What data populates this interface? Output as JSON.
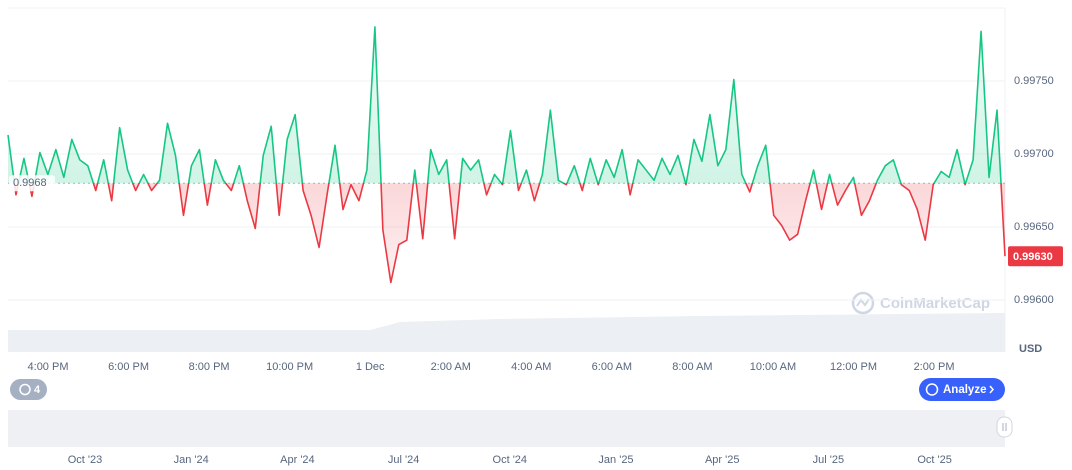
{
  "chart_data": {
    "type": "line",
    "values": [
      0.99713,
      0.99672,
      0.99697,
      0.99671,
      0.99701,
      0.99686,
      0.99703,
      0.99684,
      0.9971,
      0.99696,
      0.99692,
      0.99675,
      0.99696,
      0.99668,
      0.99718,
      0.99689,
      0.99675,
      0.99686,
      0.99675,
      0.99682,
      0.99721,
      0.99699,
      0.99658,
      0.99692,
      0.99703,
      0.99665,
      0.99696,
      0.99682,
      0.99675,
      0.99692,
      0.99668,
      0.99649,
      0.99699,
      0.99719,
      0.99658,
      0.9971,
      0.99727,
      0.99675,
      0.99658,
      0.99636,
      0.99672,
      0.99706,
      0.99662,
      0.99679,
      0.99668,
      0.99689,
      0.99787,
      0.99648,
      0.99612,
      0.99638,
      0.99641,
      0.99689,
      0.99642,
      0.99703,
      0.99686,
      0.99696,
      0.99642,
      0.99697,
      0.99689,
      0.99696,
      0.99672,
      0.99686,
      0.99679,
      0.99716,
      0.99675,
      0.99689,
      0.99668,
      0.99686,
      0.9973,
      0.99682,
      0.99679,
      0.99692,
      0.99675,
      0.99697,
      0.99679,
      0.99696,
      0.99684,
      0.99703,
      0.99672,
      0.99696,
      0.99689,
      0.99682,
      0.99697,
      0.99686,
      0.99699,
      0.99679,
      0.9971,
      0.99695,
      0.99727,
      0.99692,
      0.99703,
      0.99751,
      0.99686,
      0.99674,
      0.99692,
      0.99706,
      0.99658,
      0.99651,
      0.99641,
      0.99645,
      0.99668,
      0.99689,
      0.99662,
      0.99686,
      0.99665,
      0.99675,
      0.99684,
      0.99658,
      0.99668,
      0.99682,
      0.99692,
      0.99696,
      0.99679,
      0.99675,
      0.99662,
      0.99641,
      0.99679,
      0.99688,
      0.99684,
      0.99703,
      0.99679,
      0.99696,
      0.99784,
      0.99684,
      0.9973,
      0.9963
    ],
    "color_up": "#16c784",
    "color_down": "#ea3943",
    "baseline": 0.9968,
    "current_price": {
      "value": 0.9963,
      "label": "0.99630"
    },
    "ylim": [
      0.996,
      0.998
    ],
    "yticks": [
      {
        "value": 0.996,
        "label": "0.99600"
      },
      {
        "value": 0.9965,
        "label": "0.99650"
      },
      {
        "value": 0.997,
        "label": "0.99700"
      },
      {
        "value": 0.9975,
        "label": "0.99750"
      }
    ],
    "grid": true,
    "unit": "USD",
    "x_tick_labels": [
      "4:00 PM",
      "6:00 PM",
      "8:00 PM",
      "10:00 PM",
      "1 Dec",
      "2:00 AM",
      "4:00 AM",
      "6:00 AM",
      "8:00 AM",
      "10:00 AM",
      "12:00 PM",
      "2:00 PM"
    ],
    "navigator_labels": [
      "Oct '23",
      "Jan '24",
      "Apr '24",
      "Jul '24",
      "Oct '24",
      "Jan '25",
      "Apr '25",
      "Jul '25",
      "Oct '25"
    ],
    "watermark": "CoinMarketCap",
    "history_count": 4,
    "analyze_button": "Analyze"
  }
}
